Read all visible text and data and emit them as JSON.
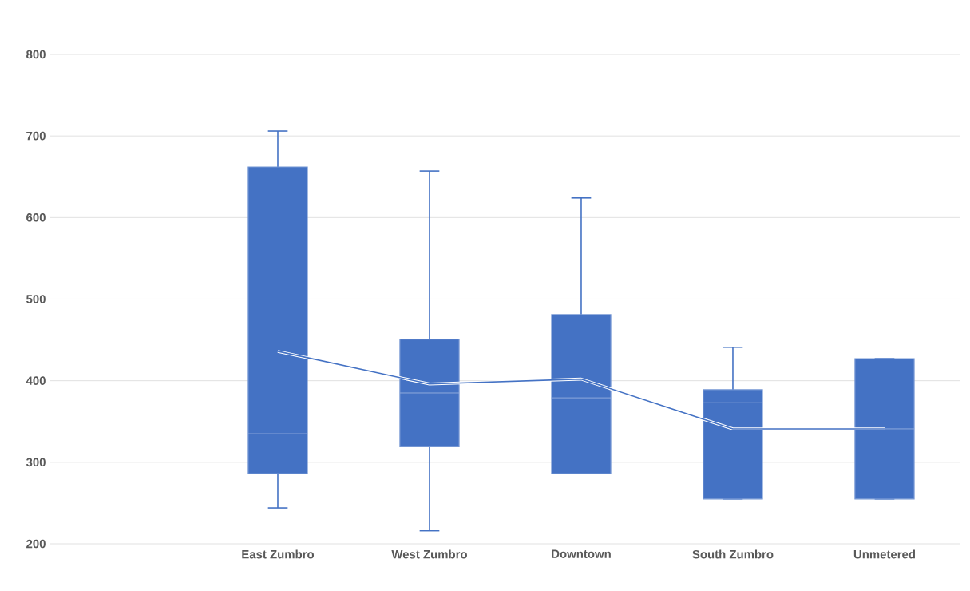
{
  "chart_data": {
    "type": "box",
    "categories": [
      null,
      "East Zumbro",
      "West Zumbro",
      "Downtown",
      "South Zumbro",
      "Unmetered"
    ],
    "series": [
      {
        "type": "box",
        "color": "#4472c4",
        "boxes": [
          null,
          {
            "low": 244,
            "q1": 286,
            "median": 335,
            "q3": 662,
            "high": 706
          },
          {
            "low": 216,
            "q1": 319,
            "median": 385,
            "q3": 451,
            "high": 657
          },
          {
            "low": 286,
            "q1": 286,
            "median": 379,
            "q3": 481,
            "high": 624
          },
          {
            "low": 255,
            "q1": 255,
            "median": 373,
            "q3": 389,
            "high": 441
          },
          {
            "low": 255,
            "q1": 255,
            "median": 341,
            "q3": 427,
            "high": 427
          }
        ]
      },
      {
        "type": "line",
        "color": "#4472c4",
        "values": [
          null,
          436,
          396,
          402,
          341,
          341
        ]
      }
    ],
    "ylim": [
      200,
      800
    ],
    "yticks": [
      200,
      300,
      400,
      500,
      600,
      700,
      800
    ],
    "grid": "y"
  }
}
